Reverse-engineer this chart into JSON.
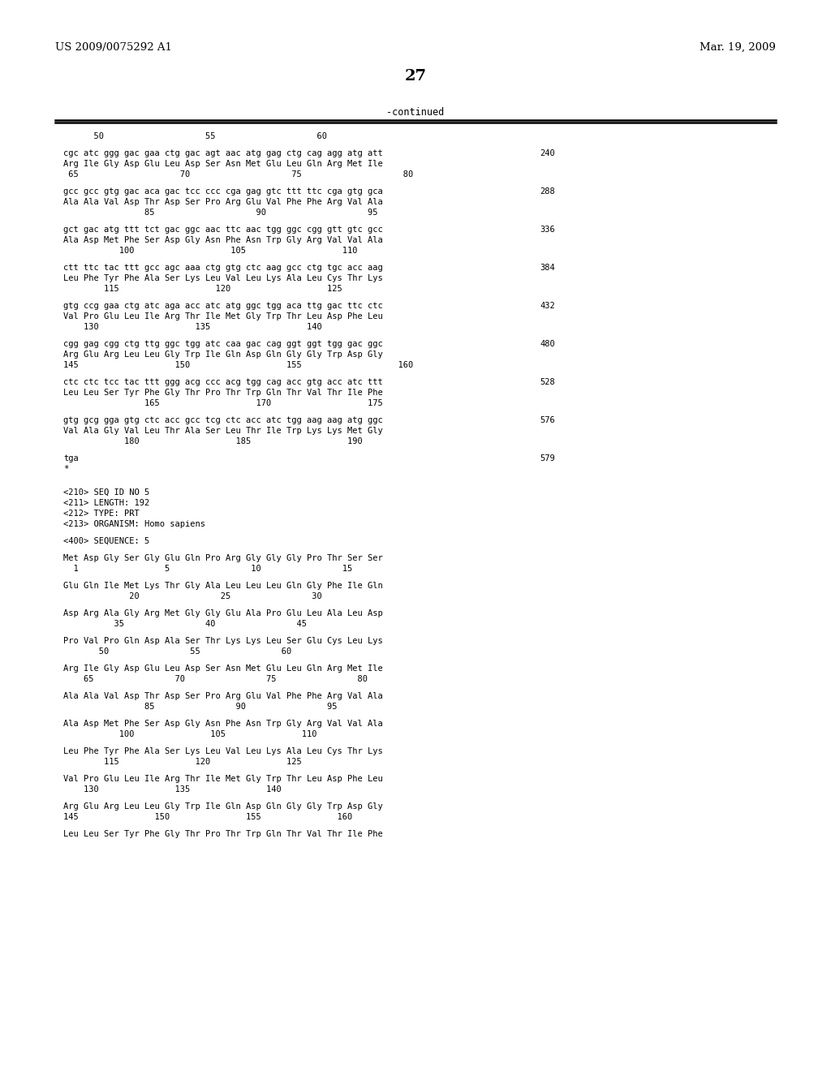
{
  "header_left": "US 2009/0075292 A1",
  "header_right": "Mar. 19, 2009",
  "page_number": "27",
  "continued_label": "-continued",
  "bg_color": "#ffffff",
  "text_color": "#000000",
  "font_size": 7.5,
  "mono_font": "DejaVu Sans Mono",
  "serif_font": "DejaVu Serif",
  "fig_width": 10.24,
  "fig_height": 13.2,
  "dpi": 100,
  "content_lines": [
    {
      "type": "ruler",
      "text": "      50                    55                    60"
    },
    {
      "type": "blank"
    },
    {
      "type": "dna",
      "text": "cgc atc ggg gac gaa ctg gac agt aac atg gag ctg cag agg atg att",
      "num": "240"
    },
    {
      "type": "aa",
      "text": "Arg Ile Gly Asp Glu Leu Asp Ser Asn Met Glu Leu Gln Arg Met Ile"
    },
    {
      "type": "ruler",
      "text": " 65                    70                    75                    80"
    },
    {
      "type": "blank"
    },
    {
      "type": "dna",
      "text": "gcc gcc gtg gac aca gac tcc ccc cga gag gtc ttt ttc cga gtg gca",
      "num": "288"
    },
    {
      "type": "aa",
      "text": "Ala Ala Val Asp Thr Asp Ser Pro Arg Glu Val Phe Phe Arg Val Ala"
    },
    {
      "type": "ruler",
      "text": "                85                    90                    95"
    },
    {
      "type": "blank"
    },
    {
      "type": "dna",
      "text": "gct gac atg ttt tct gac ggc aac ttc aac tgg ggc cgg gtt gtc gcc",
      "num": "336"
    },
    {
      "type": "aa",
      "text": "Ala Asp Met Phe Ser Asp Gly Asn Phe Asn Trp Gly Arg Val Val Ala"
    },
    {
      "type": "ruler",
      "text": "           100                   105                   110"
    },
    {
      "type": "blank"
    },
    {
      "type": "dna",
      "text": "ctt ttc tac ttt gcc agc aaa ctg gtg ctc aag gcc ctg tgc acc aag",
      "num": "384"
    },
    {
      "type": "aa",
      "text": "Leu Phe Tyr Phe Ala Ser Lys Leu Val Leu Lys Ala Leu Cys Thr Lys"
    },
    {
      "type": "ruler",
      "text": "        115                   120                   125"
    },
    {
      "type": "blank"
    },
    {
      "type": "dna",
      "text": "gtg ccg gaa ctg atc aga acc atc atg ggc tgg aca ttg gac ttc ctc",
      "num": "432"
    },
    {
      "type": "aa",
      "text": "Val Pro Glu Leu Ile Arg Thr Ile Met Gly Trp Thr Leu Asp Phe Leu"
    },
    {
      "type": "ruler",
      "text": "    130                   135                   140"
    },
    {
      "type": "blank"
    },
    {
      "type": "dna",
      "text": "cgg gag cgg ctg ttg ggc tgg atc caa gac cag ggt ggt tgg gac ggc",
      "num": "480"
    },
    {
      "type": "aa",
      "text": "Arg Glu Arg Leu Leu Gly Trp Ile Gln Asp Gln Gly Gly Trp Asp Gly"
    },
    {
      "type": "ruler",
      "text": "145                   150                   155                   160"
    },
    {
      "type": "blank"
    },
    {
      "type": "dna",
      "text": "ctc ctc tcc tac ttt ggg acg ccc acg tgg cag acc gtg acc atc ttt",
      "num": "528"
    },
    {
      "type": "aa",
      "text": "Leu Leu Ser Tyr Phe Gly Thr Pro Thr Trp Gln Thr Val Thr Ile Phe"
    },
    {
      "type": "ruler",
      "text": "                165                   170                   175"
    },
    {
      "type": "blank"
    },
    {
      "type": "dna",
      "text": "gtg gcg gga gtg ctc acc gcc tcg ctc acc atc tgg aag aag atg ggc",
      "num": "576"
    },
    {
      "type": "aa",
      "text": "Val Ala Gly Val Leu Thr Ala Ser Leu Thr Ile Trp Lys Lys Met Gly"
    },
    {
      "type": "ruler",
      "text": "            180                   185                   190"
    },
    {
      "type": "blank"
    },
    {
      "type": "dna",
      "text": "tga",
      "num": "579"
    },
    {
      "type": "aa",
      "text": "*"
    },
    {
      "type": "blank"
    },
    {
      "type": "blank"
    },
    {
      "type": "meta",
      "text": "<210> SEQ ID NO 5"
    },
    {
      "type": "meta",
      "text": "<211> LENGTH: 192"
    },
    {
      "type": "meta",
      "text": "<212> TYPE: PRT"
    },
    {
      "type": "meta",
      "text": "<213> ORGANISM: Homo sapiens"
    },
    {
      "type": "blank"
    },
    {
      "type": "meta",
      "text": "<400> SEQUENCE: 5"
    },
    {
      "type": "blank"
    },
    {
      "type": "aa",
      "text": "Met Asp Gly Ser Gly Glu Gln Pro Arg Gly Gly Gly Pro Thr Ser Ser"
    },
    {
      "type": "ruler",
      "text": "  1                 5                10                15"
    },
    {
      "type": "blank"
    },
    {
      "type": "aa",
      "text": "Glu Gln Ile Met Lys Thr Gly Ala Leu Leu Leu Gln Gly Phe Ile Gln"
    },
    {
      "type": "ruler",
      "text": "             20                25                30"
    },
    {
      "type": "blank"
    },
    {
      "type": "aa",
      "text": "Asp Arg Ala Gly Arg Met Gly Gly Glu Ala Pro Glu Leu Ala Leu Asp"
    },
    {
      "type": "ruler",
      "text": "          35                40                45"
    },
    {
      "type": "blank"
    },
    {
      "type": "aa",
      "text": "Pro Val Pro Gln Asp Ala Ser Thr Lys Lys Leu Ser Glu Cys Leu Lys"
    },
    {
      "type": "ruler",
      "text": "       50                55                60"
    },
    {
      "type": "blank"
    },
    {
      "type": "aa",
      "text": "Arg Ile Gly Asp Glu Leu Asp Ser Asn Met Glu Leu Gln Arg Met Ile"
    },
    {
      "type": "ruler",
      "text": "    65                70                75                80"
    },
    {
      "type": "blank"
    },
    {
      "type": "aa",
      "text": "Ala Ala Val Asp Thr Asp Ser Pro Arg Glu Val Phe Phe Arg Val Ala"
    },
    {
      "type": "ruler",
      "text": "                85                90                95"
    },
    {
      "type": "blank"
    },
    {
      "type": "aa",
      "text": "Ala Asp Met Phe Ser Asp Gly Asn Phe Asn Trp Gly Arg Val Val Ala"
    },
    {
      "type": "ruler",
      "text": "           100               105               110"
    },
    {
      "type": "blank"
    },
    {
      "type": "aa",
      "text": "Leu Phe Tyr Phe Ala Ser Lys Leu Val Leu Lys Ala Leu Cys Thr Lys"
    },
    {
      "type": "ruler",
      "text": "        115               120               125"
    },
    {
      "type": "blank"
    },
    {
      "type": "aa",
      "text": "Val Pro Glu Leu Ile Arg Thr Ile Met Gly Trp Thr Leu Asp Phe Leu"
    },
    {
      "type": "ruler",
      "text": "    130               135               140"
    },
    {
      "type": "blank"
    },
    {
      "type": "aa",
      "text": "Arg Glu Arg Leu Leu Gly Trp Ile Gln Asp Gln Gly Gly Trp Asp Gly"
    },
    {
      "type": "ruler",
      "text": "145               150               155               160"
    },
    {
      "type": "blank"
    },
    {
      "type": "aa",
      "text": "Leu Leu Ser Tyr Phe Gly Thr Pro Thr Trp Gln Thr Val Thr Ile Phe"
    }
  ]
}
